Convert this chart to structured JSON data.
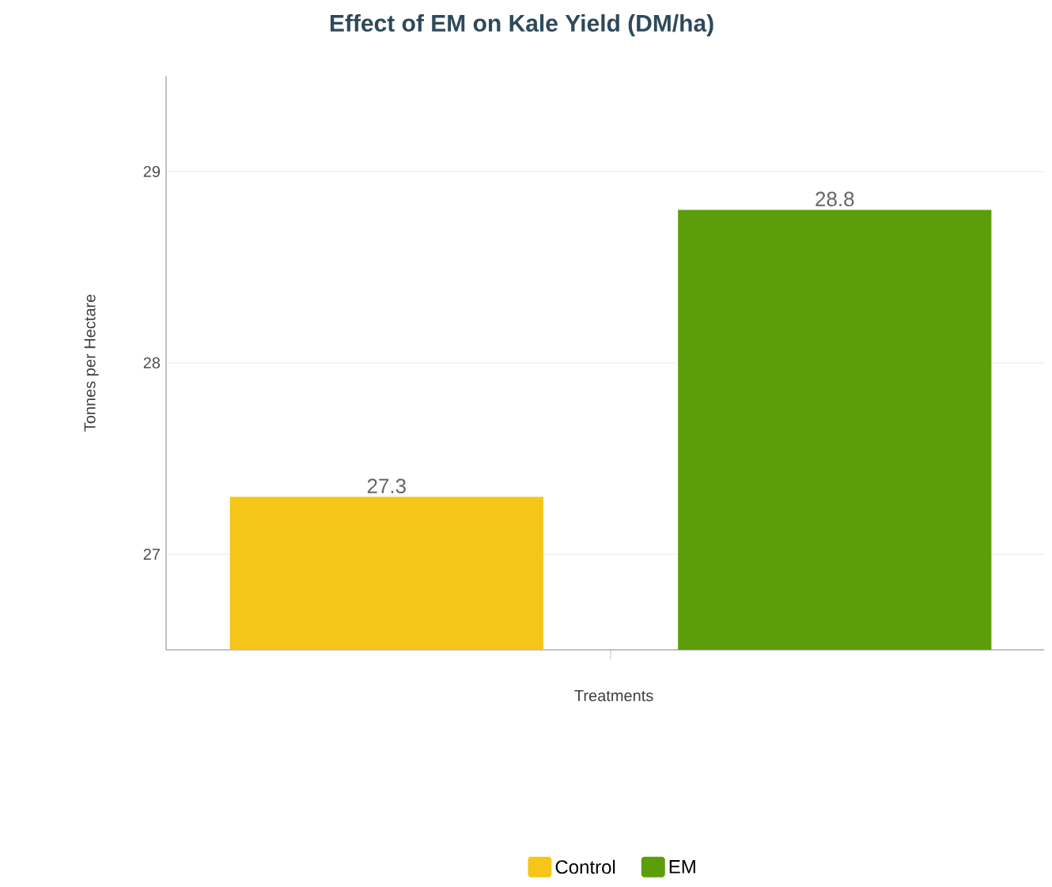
{
  "chart_data": {
    "type": "bar",
    "title": "Effect of EM on Kale Yield (DM/ha)",
    "xlabel": "Treatments",
    "ylabel": "Tonnes per Hectare",
    "categories": [
      null
    ],
    "series": [
      {
        "name": "Control",
        "color": "#f5c518",
        "values": [
          27.3
        ]
      },
      {
        "name": "EM",
        "color": "#5c9e0a",
        "values": [
          28.8
        ]
      }
    ],
    "ylim": [
      26.5,
      29.5
    ],
    "yticks": [
      27,
      28,
      29
    ],
    "grid": "y",
    "legend": "bottom",
    "data_labels": true
  }
}
